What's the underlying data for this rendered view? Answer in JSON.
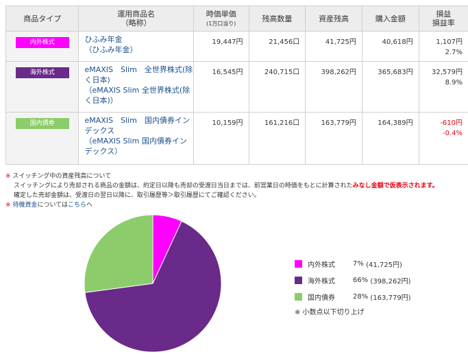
{
  "table": {
    "headers": {
      "type": "商品タイプ",
      "name": "運用商品名",
      "name_sub": "（略称）",
      "unit_price": "時価単価",
      "unit_price_sub": "(1万口当り)",
      "quantity": "残高数量",
      "balance": "資産残高",
      "purchase": "購入金額",
      "pl": "損益",
      "pl_rate": "損益率"
    },
    "rows": [
      {
        "type": "内外株式",
        "type_color": "#ff00ff",
        "name1": "ひふみ年金",
        "name2": "（ひふみ年金）",
        "unit_price": "19,447円",
        "quantity": "21,456口",
        "balance": "41,725円",
        "purchase": "40,618円",
        "pl": "1,107円",
        "pl_rate": "2.7%"
      },
      {
        "type": "海外株式",
        "type_color": "#6a2a8a",
        "name1": "eMAXIS　Slim　全世界株式(除く日本)",
        "name2": "（eMAXIS Slim 全世界株式(除く日本)）",
        "unit_price": "16,545円",
        "quantity": "240,715口",
        "balance": "398,262円",
        "purchase": "365,683円",
        "pl": "32,579円",
        "pl_rate": "8.9%"
      },
      {
        "type": "国内債券",
        "type_color": "#8ccc6a",
        "name1": "eMAXIS　Slim　国内債券インデックス",
        "name2": "（eMAXIS Slim 国内債券インデックス）",
        "unit_price": "10,159円",
        "quantity": "161,216口",
        "balance": "163,779円",
        "purchase": "164,389円",
        "pl": "-610円",
        "pl_rate": "-0.4%"
      }
    ]
  },
  "notes": {
    "mark": "※",
    "line1": "スイッチング中の資産残高について",
    "line2a": "スイッチングにより売却される商品の金額は、約定日以降も売却の受渡日当日までは、前営業日の時価をもとに計算された",
    "line2b": "みなし金額で仮表示されます。",
    "line3": "確定した売却金額は、受渡日の翌日以降に、取引履歴等＞取引履歴にてご確認ください。",
    "line4a": "待機資金",
    "line4b": "については",
    "line4c": "こちら",
    "line4d": "へ"
  },
  "chart_data": {
    "type": "pie",
    "categories": [
      "内外株式",
      "海外株式",
      "国内債券"
    ],
    "values": [
      41725,
      398262,
      163779
    ],
    "percent": [
      7,
      66,
      28
    ],
    "colors": [
      "#ff00ff",
      "#6a2a8a",
      "#8ccc6a"
    ],
    "legend": [
      {
        "label": "内外株式",
        "pct": "7%",
        "amount": "(41,725円)"
      },
      {
        "label": "海外株式",
        "pct": "66%",
        "amount": "(398,262円)"
      },
      {
        "label": "国内債券",
        "pct": "28%",
        "amount": "(163,779円)"
      }
    ],
    "footnote": "※ 小数点以下切り上げ"
  }
}
